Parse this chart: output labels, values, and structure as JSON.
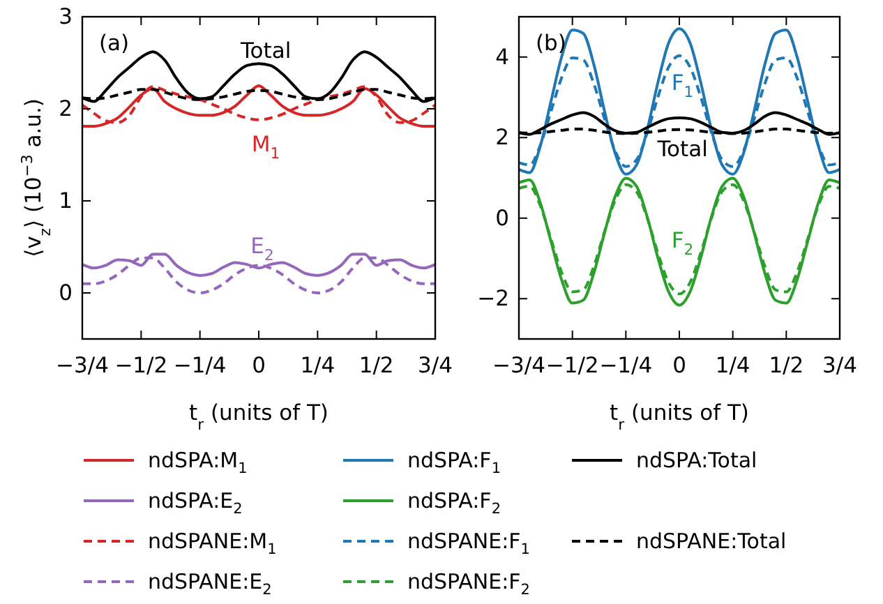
{
  "chart_data": [
    {
      "type": "line",
      "ylabel": "⟨v$_{z}$⟩ (10$^{−3}$ a.u.)",
      "xlabel": "t$_{r}$ (units of T)",
      "xlim": [
        -0.75,
        0.75
      ],
      "ylim": [
        -0.5,
        3
      ],
      "xticks": [
        {
          "value": -0.75,
          "label": "−3/4"
        },
        {
          "value": -0.5,
          "label": "−1/2"
        },
        {
          "value": -0.25,
          "label": "−1/4"
        },
        0,
        {
          "value": 0.25,
          "label": "1/4"
        },
        {
          "value": 0.5,
          "label": "1/2"
        },
        {
          "value": 0.75,
          "label": "3/4"
        }
      ],
      "yticks": [
        0,
        1,
        2,
        3
      ],
      "grid": false,
      "legend": "bottom",
      "x": [
        -0.75,
        -0.7,
        -0.65,
        -0.6,
        -0.55,
        -0.5,
        -0.45,
        -0.4,
        -0.35,
        -0.3,
        -0.25,
        -0.2,
        -0.15,
        -0.1,
        -0.05,
        0,
        0.05,
        0.1,
        0.15,
        0.2,
        0.25,
        0.3,
        0.35,
        0.4,
        0.45,
        0.5,
        0.55,
        0.6,
        0.65,
        0.7,
        0.75
      ],
      "series": [
        {
          "name": "ndSPA:M$_{1}$",
          "color": "#d62728",
          "line_style": "solid",
          "values": [
            1.81,
            1.81,
            1.84,
            1.9,
            2.02,
            2.15,
            2.22,
            2.08,
            2.0,
            1.95,
            1.93,
            1.93,
            1.96,
            2.03,
            2.15,
            2.25,
            2.15,
            2.03,
            1.96,
            1.93,
            1.93,
            1.95,
            2.0,
            2.08,
            2.22,
            2.15,
            2.02,
            1.9,
            1.84,
            1.81,
            1.81
          ]
        },
        {
          "name": "ndSPA:E$_{2}$",
          "color": "#9467bd",
          "line_style": "solid",
          "values": [
            0.31,
            0.27,
            0.3,
            0.36,
            0.35,
            0.3,
            0.42,
            0.42,
            0.3,
            0.22,
            0.19,
            0.21,
            0.28,
            0.33,
            0.31,
            0.27,
            0.31,
            0.33,
            0.28,
            0.21,
            0.19,
            0.22,
            0.3,
            0.42,
            0.42,
            0.3,
            0.35,
            0.36,
            0.3,
            0.27,
            0.31
          ]
        },
        {
          "name": "ndSPANE:M$_{1}$",
          "color": "#d62728",
          "line_style": "dashed",
          "values": [
            2.04,
            1.95,
            1.87,
            1.85,
            1.93,
            2.13,
            2.24,
            2.2,
            2.16,
            2.13,
            2.1,
            2.05,
            2.0,
            1.94,
            1.9,
            1.88,
            1.9,
            1.94,
            2.0,
            2.05,
            2.1,
            2.13,
            2.16,
            2.2,
            2.24,
            2.13,
            1.93,
            1.85,
            1.87,
            1.95,
            2.04
          ]
        },
        {
          "name": "ndSPANE:E$_{2}$",
          "color": "#9467bd",
          "line_style": "dashed",
          "values": [
            0.1,
            0.1,
            0.13,
            0.2,
            0.3,
            0.38,
            0.38,
            0.27,
            0.12,
            0.03,
            0.0,
            0.03,
            0.1,
            0.2,
            0.27,
            0.3,
            0.27,
            0.2,
            0.1,
            0.03,
            0.0,
            0.03,
            0.12,
            0.27,
            0.38,
            0.38,
            0.3,
            0.2,
            0.13,
            0.1,
            0.1
          ]
        },
        {
          "color": "#000000",
          "line_style": "solid",
          "values": [
            2.12,
            2.08,
            2.2,
            2.34,
            2.45,
            2.56,
            2.62,
            2.53,
            2.33,
            2.17,
            2.11,
            2.13,
            2.25,
            2.38,
            2.47,
            2.49,
            2.47,
            2.38,
            2.25,
            2.13,
            2.11,
            2.17,
            2.33,
            2.53,
            2.62,
            2.56,
            2.45,
            2.34,
            2.2,
            2.08,
            2.12
          ]
        },
        {
          "color": "#000000",
          "line_style": "dashed",
          "values": [
            2.12,
            2.11,
            2.12,
            2.15,
            2.18,
            2.21,
            2.21,
            2.18,
            2.14,
            2.11,
            2.1,
            2.11,
            2.13,
            2.16,
            2.19,
            2.2,
            2.19,
            2.16,
            2.13,
            2.11,
            2.1,
            2.11,
            2.14,
            2.18,
            2.21,
            2.21,
            2.18,
            2.15,
            2.12,
            2.11,
            2.12
          ]
        }
      ],
      "annotations": [
        "(a)",
        "Total",
        "M$_{1}$",
        "E$_{2}$"
      ]
    },
    {
      "type": "line",
      "xlabel": "t$_{r}$ (units of T)",
      "xlim": [
        -0.75,
        0.75
      ],
      "ylim": [
        -3,
        5
      ],
      "xticks": [
        {
          "value": -0.75,
          "label": "−3/4"
        },
        {
          "value": -0.5,
          "label": "−1/2"
        },
        {
          "value": -0.25,
          "label": "−1/4"
        },
        0,
        {
          "value": 0.25,
          "label": "1/4"
        },
        {
          "value": 0.5,
          "label": "1/2"
        },
        {
          "value": 0.75,
          "label": "3/4"
        }
      ],
      "yticks": [
        -2,
        0,
        2,
        4
      ],
      "grid": false,
      "legend": "bottom",
      "x": [
        -0.75,
        -0.7,
        -0.65,
        -0.6,
        -0.55,
        -0.5,
        -0.45,
        -0.4,
        -0.35,
        -0.3,
        -0.25,
        -0.2,
        -0.15,
        -0.1,
        -0.05,
        0,
        0.05,
        0.1,
        0.15,
        0.2,
        0.25,
        0.3,
        0.35,
        0.4,
        0.45,
        0.5,
        0.55,
        0.6,
        0.65,
        0.7,
        0.75
      ],
      "series": [
        {
          "name": "ndSPA:F$_{1}$",
          "color": "#1f77b4",
          "line_style": "solid",
          "values": [
            1.21,
            1.13,
            1.79,
            2.9,
            4.01,
            4.67,
            4.59,
            3.82,
            2.66,
            1.61,
            1.09,
            1.32,
            2.2,
            3.37,
            4.35,
            4.7,
            4.35,
            3.37,
            2.2,
            1.32,
            1.09,
            1.61,
            2.66,
            3.82,
            4.59,
            4.67,
            4.01,
            2.9,
            1.79,
            1.13,
            1.21
          ]
        },
        {
          "name": "ndSPA:F$_{2}$",
          "color": "#2ca02c",
          "line_style": "solid",
          "values": [
            0.88,
            0.95,
            0.38,
            -0.58,
            -1.54,
            -2.11,
            -2.04,
            -1.37,
            -0.37,
            0.54,
            0.99,
            0.79,
            0.03,
            -0.99,
            -1.83,
            -2.16,
            -1.83,
            -0.99,
            0.03,
            0.79,
            0.99,
            0.54,
            -0.37,
            -1.37,
            -2.04,
            -2.11,
            -1.54,
            -0.58,
            0.38,
            0.95,
            0.88
          ]
        },
        {
          "name": "ndSPANE:F$_{1}$",
          "color": "#1f77b4",
          "line_style": "dashed",
          "values": [
            1.38,
            1.32,
            1.81,
            2.65,
            3.49,
            3.98,
            3.93,
            3.34,
            2.47,
            1.67,
            1.28,
            1.45,
            2.12,
            3.01,
            3.75,
            4.03,
            3.75,
            3.01,
            2.12,
            1.45,
            1.28,
            1.67,
            2.47,
            3.34,
            3.93,
            3.98,
            3.49,
            2.65,
            1.81,
            1.32,
            1.38
          ]
        },
        {
          "name": "ndSPANE:F$_{2}$",
          "color": "#2ca02c",
          "line_style": "dashed",
          "values": [
            0.74,
            0.79,
            0.31,
            -0.52,
            -1.35,
            -1.83,
            -1.78,
            -1.2,
            -0.34,
            0.44,
            0.83,
            0.66,
            0.0,
            -0.87,
            -1.6,
            -1.88,
            -1.6,
            -0.87,
            0.0,
            0.66,
            0.83,
            0.44,
            -0.34,
            -1.2,
            -1.78,
            -1.83,
            -1.35,
            -0.52,
            0.31,
            0.79,
            0.74
          ]
        },
        {
          "name": "ndSPA:Total",
          "color": "#000000",
          "line_style": "solid",
          "values": [
            2.12,
            2.08,
            2.2,
            2.34,
            2.45,
            2.56,
            2.62,
            2.53,
            2.33,
            2.17,
            2.11,
            2.13,
            2.25,
            2.38,
            2.47,
            2.49,
            2.47,
            2.38,
            2.25,
            2.13,
            2.11,
            2.17,
            2.33,
            2.53,
            2.62,
            2.56,
            2.45,
            2.34,
            2.2,
            2.08,
            2.12
          ]
        },
        {
          "name": "ndSPANE:Total",
          "color": "#000000",
          "line_style": "dashed",
          "values": [
            2.12,
            2.11,
            2.12,
            2.15,
            2.18,
            2.21,
            2.21,
            2.18,
            2.14,
            2.11,
            2.1,
            2.11,
            2.13,
            2.16,
            2.19,
            2.2,
            2.19,
            2.16,
            2.13,
            2.11,
            2.1,
            2.11,
            2.14,
            2.18,
            2.21,
            2.21,
            2.18,
            2.15,
            2.12,
            2.11,
            2.12
          ]
        }
      ],
      "annotations": [
        "(b)",
        "F$_{1}$",
        "Total",
        "F$_{2}$"
      ]
    }
  ]
}
